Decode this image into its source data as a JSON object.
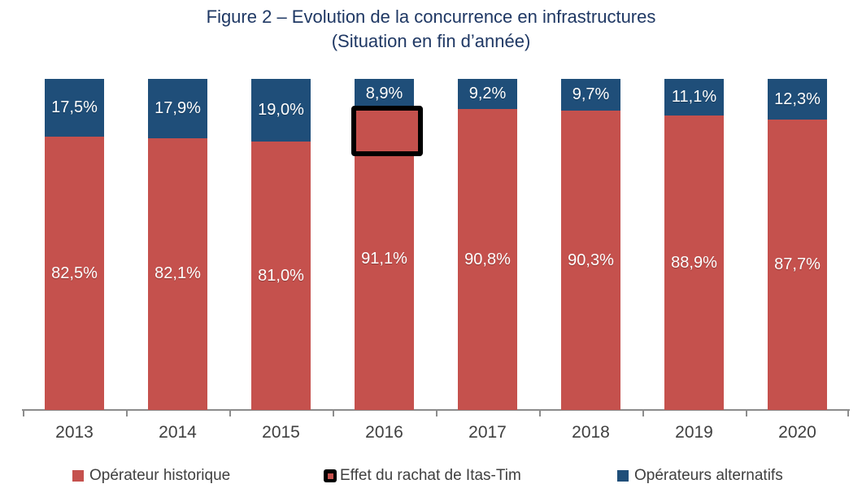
{
  "title": {
    "line1": "Figure 2 – Evolution de la concurrence en infrastructures",
    "line2": "(Situation en fin d’année)"
  },
  "chart_data": {
    "type": "bar",
    "stacked": true,
    "categories": [
      "2013",
      "2014",
      "2015",
      "2016",
      "2017",
      "2018",
      "2019",
      "2020"
    ],
    "series": [
      {
        "name": "Opérateur historique",
        "color": "#C5514D",
        "values": [
          82.5,
          82.1,
          81.0,
          91.1,
          90.8,
          90.3,
          88.9,
          87.7
        ],
        "labels": [
          "82,5%",
          "82,1%",
          "81,0%",
          "91,1%",
          "90,8%",
          "90,3%",
          "88,9%",
          "87,7%"
        ]
      },
      {
        "name": "Opérateurs alternatifs",
        "color": "#1F4E79",
        "values": [
          17.5,
          17.9,
          19.0,
          8.9,
          9.2,
          9.7,
          11.1,
          12.3
        ],
        "labels": [
          "17,5%",
          "17,9%",
          "19,0%",
          "8,9%",
          "9,2%",
          "9,7%",
          "11,1%",
          "12,3%"
        ]
      }
    ],
    "ylim": [
      0,
      100
    ],
    "value_format": "percent_fr_one_decimal",
    "grid": false,
    "legend_position": "bottom",
    "annotation": {
      "label": "Effet du rachat de Itas-Tim",
      "category": "2016",
      "border_color": "#000000",
      "fill_color": "#C5514D"
    }
  },
  "legend": {
    "items": [
      {
        "label": "Opérateur historique",
        "marker": "square",
        "color": "#C5514D"
      },
      {
        "label": "Effet du rachat de Itas-Tim",
        "marker": "outlined-square",
        "color": "#000000",
        "inner_color": "#C5514D"
      },
      {
        "label": "Opérateurs alternatifs",
        "marker": "square",
        "color": "#1F4E79"
      }
    ]
  }
}
